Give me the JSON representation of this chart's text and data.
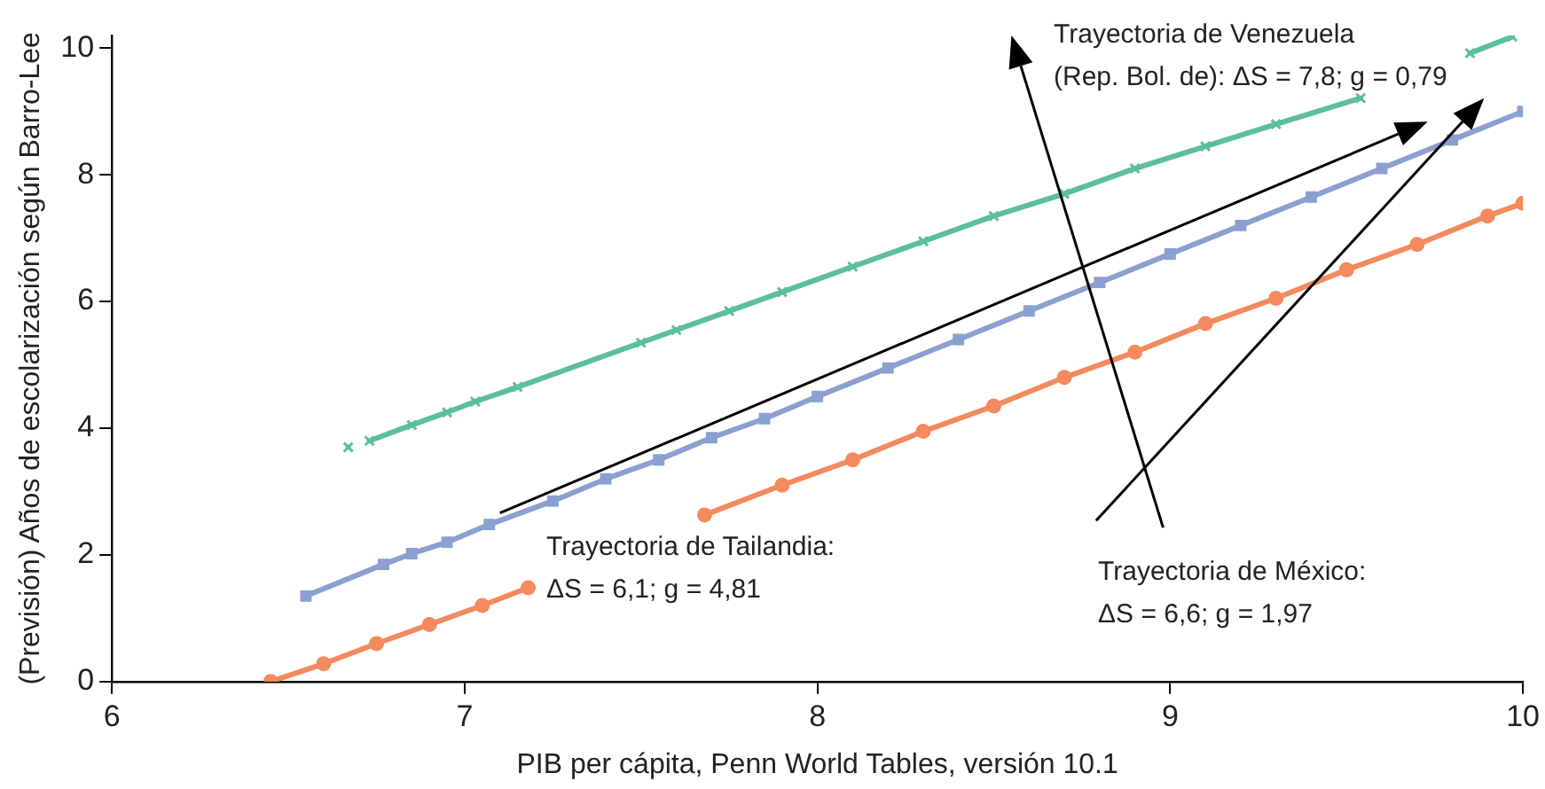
{
  "chart_data": {
    "type": "line",
    "xlabel": "PIB per cápita, Penn World Tables, versión 10.1",
    "ylabel": "(Previsión) Años de escolarización según Barro-Lee",
    "xlim": [
      6,
      10
    ],
    "xticks": [
      6,
      7,
      8,
      9,
      10
    ],
    "ylim": [
      0,
      10.2
    ],
    "yticks": [
      0,
      2,
      4,
      6,
      8,
      10
    ],
    "grid": false,
    "legend": false,
    "line_style": "solid",
    "series": [
      {
        "color": "#5cbf9b",
        "marker": "cross",
        "x": [
          6.67,
          6.7,
          6.73,
          6.85,
          6.95,
          7.03,
          7.15,
          7.5,
          7.6,
          7.75,
          7.9,
          8.1,
          8.3,
          8.5,
          8.7,
          8.9,
          9.1,
          9.3,
          9.54,
          9.7,
          9.85,
          9.97
        ],
        "values": [
          3.7,
          null,
          3.8,
          4.05,
          4.25,
          4.42,
          4.65,
          5.35,
          5.55,
          5.85,
          6.15,
          6.55,
          6.95,
          7.35,
          7.7,
          8.1,
          8.45,
          8.8,
          9.21,
          null,
          9.92,
          10.18
        ]
      },
      {
        "color": "#8b9fd0",
        "marker": "square",
        "x": [
          6.55,
          6.77,
          6.85,
          6.95,
          7.07,
          7.25,
          7.4,
          7.55,
          7.7,
          7.85,
          8.0,
          8.2,
          8.4,
          8.6,
          8.8,
          9.0,
          9.2,
          9.4,
          9.6,
          9.8,
          10.0
        ],
        "values": [
          1.35,
          1.85,
          2.02,
          2.2,
          2.48,
          2.85,
          3.2,
          3.5,
          3.85,
          4.15,
          4.5,
          4.95,
          5.4,
          5.85,
          6.3,
          6.75,
          7.2,
          7.65,
          8.1,
          8.55,
          9.0
        ]
      },
      {
        "color": "#f48a5e",
        "marker": "circle",
        "x": [
          6.45,
          6.6,
          6.75,
          6.9,
          7.05,
          7.18,
          7.4,
          7.68,
          7.9,
          8.1,
          8.3,
          8.5,
          8.7,
          8.9,
          9.1,
          9.3,
          9.5,
          9.7,
          9.9,
          10.0
        ],
        "values": [
          0,
          0.28,
          0.6,
          0.9,
          1.2,
          1.48,
          null,
          2.63,
          3.1,
          3.5,
          3.95,
          4.35,
          4.8,
          5.2,
          5.65,
          6.05,
          6.5,
          6.9,
          7.35,
          7.55
        ]
      }
    ],
    "annotations": [
      "Trayectoria de Venezuela\n(Rep. Bol. de): ΔS = 7,8; g = 0,79",
      "Trayectoria de Tailandia:\nΔS = 6,1; g = 4,81",
      "Trayectoria de México:\nΔS = 6,6; g = 1,97"
    ]
  }
}
